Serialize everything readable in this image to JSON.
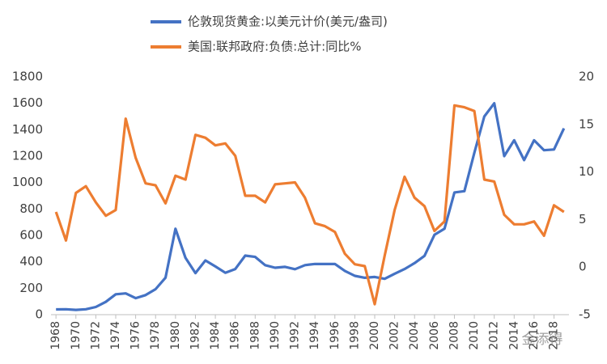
{
  "chart_data": {
    "type": "line",
    "series": [
      {
        "name": "伦敦现货黄金:以美元计价(美元/盎司)",
        "color": "#4472c4",
        "axis": "y",
        "values": [
          40,
          41,
          36,
          41,
          58,
          97,
          154,
          161,
          125,
          148,
          193,
          280,
          650,
          430,
          315,
          410,
          365,
          317,
          345,
          447,
          437,
          375,
          355,
          362,
          344,
          375,
          384,
          383,
          384,
          331,
          294,
          279,
          285,
          271,
          310,
          345,
          390,
          445,
          604,
          650,
          925,
          935,
          1225,
          1500,
          1600,
          1200,
          1320,
          1170,
          1320,
          1245,
          1250,
          1410
        ]
      },
      {
        "name": "美国:联邦政府:负债:总计:同比%",
        "color": "#ed7d31",
        "axis": "y2",
        "values": [
          5.8,
          2.8,
          7.8,
          8.5,
          6.8,
          5.4,
          6.0,
          15.6,
          11.5,
          8.8,
          8.6,
          6.7,
          9.6,
          9.2,
          13.9,
          13.6,
          12.8,
          13.0,
          11.7,
          7.5,
          7.5,
          6.8,
          8.7,
          8.8,
          8.9,
          7.3,
          4.6,
          4.3,
          3.7,
          1.4,
          0.3,
          0.1,
          -3.9,
          1.2,
          6.0,
          9.5,
          7.3,
          6.4,
          3.8,
          4.8,
          17.0,
          16.8,
          16.4,
          9.2,
          9.0,
          5.5,
          4.5,
          4.5,
          4.8,
          3.3,
          6.5,
          5.8
        ]
      }
    ],
    "x": [
      1968,
      1969,
      1970,
      1971,
      1972,
      1973,
      1974,
      1975,
      1976,
      1977,
      1978,
      1979,
      1980,
      1981,
      1982,
      1983,
      1984,
      1985,
      1986,
      1987,
      1988,
      1989,
      1990,
      1991,
      1992,
      1993,
      1994,
      1995,
      1996,
      1997,
      1998,
      1999,
      2000,
      2001,
      2002,
      2003,
      2004,
      2005,
      2006,
      2007,
      2008,
      2009,
      2010,
      2011,
      2012,
      2013,
      2014,
      2015,
      2016,
      2017,
      2018,
      2019
    ],
    "xlim": [
      1967.5,
      2019.5
    ],
    "xticks": [
      1968,
      1970,
      1972,
      1974,
      1976,
      1978,
      1980,
      1982,
      1984,
      1986,
      1988,
      1990,
      1992,
      1994,
      1996,
      1998,
      2000,
      2002,
      2004,
      2006,
      2008,
      2010,
      2012,
      2014,
      2016,
      2018
    ],
    "ylim": [
      0,
      1800
    ],
    "yticks": [
      0,
      200,
      400,
      600,
      800,
      1000,
      1200,
      1400,
      1600,
      1800
    ],
    "y2lim": [
      -5,
      20
    ],
    "y2ticks": [
      -5,
      0,
      5,
      10,
      15,
      20
    ],
    "grid": false,
    "legend": "top",
    "watermark": "金添得"
  }
}
